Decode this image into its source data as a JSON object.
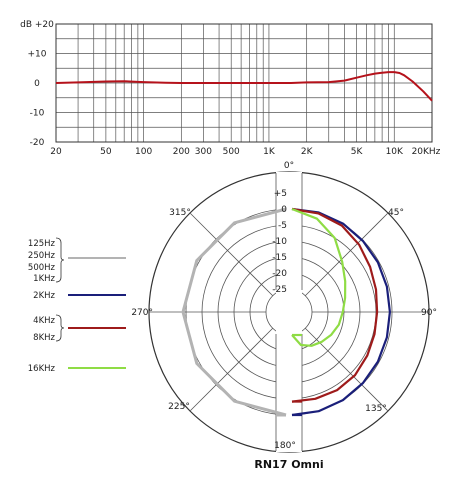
{
  "chart_data": [
    {
      "type": "line",
      "title": "",
      "xlabel": "",
      "ylabel": "",
      "x_scale": "log",
      "xlim": [
        20,
        20000
      ],
      "ylim": [
        -20,
        20
      ],
      "grid": true,
      "y_ticks": [
        {
          "value": 20,
          "label": "dB +20"
        },
        {
          "value": 10,
          "label": "+10"
        },
        {
          "value": 0,
          "label": "0"
        },
        {
          "value": -10,
          "label": "-10"
        },
        {
          "value": -20,
          "label": "-20"
        }
      ],
      "x_tick_labels": [
        {
          "value": 20,
          "label": "20"
        },
        {
          "value": 50,
          "label": "50"
        },
        {
          "value": 100,
          "label": "100"
        },
        {
          "value": 200,
          "label": "200"
        },
        {
          "value": 300,
          "label": "300"
        },
        {
          "value": 500,
          "label": "500"
        },
        {
          "value": 1000,
          "label": "1K"
        },
        {
          "value": 2000,
          "label": "2K"
        },
        {
          "value": 5000,
          "label": "5K"
        },
        {
          "value": 10000,
          "label": "10K"
        },
        {
          "value": 20000,
          "label": "20KHz"
        }
      ],
      "series": [
        {
          "color": "#b5121b",
          "x": [
            20,
            30,
            50,
            70,
            100,
            150,
            200,
            300,
            500,
            700,
            1000,
            1500,
            2000,
            3000,
            4000,
            5000,
            6000,
            7000,
            8000,
            9000,
            10000,
            11000,
            12000,
            14000,
            17000,
            20000
          ],
          "y": [
            0,
            0.2,
            0.5,
            0.6,
            0.3,
            0.1,
            0,
            0,
            0,
            0,
            0,
            0,
            0.2,
            0.3,
            0.8,
            1.8,
            2.6,
            3.2,
            3.5,
            3.7,
            3.7,
            3.4,
            2.6,
            0.5,
            -2.8,
            -6
          ]
        }
      ]
    },
    {
      "type": "polar",
      "title": "RN17 Omni",
      "rlim": [
        -25,
        5
      ],
      "radial_ticks": [
        {
          "value": 5,
          "label": "+5"
        },
        {
          "value": 0,
          "label": "0"
        },
        {
          "value": -5,
          "label": "-5"
        },
        {
          "value": -10,
          "label": "-10"
        },
        {
          "value": -15,
          "label": "-15"
        },
        {
          "value": -20,
          "label": "-20"
        },
        {
          "value": -25,
          "label": "-25"
        }
      ],
      "angle_labels": [
        {
          "angle": 0,
          "label": "0°"
        },
        {
          "angle": 45,
          "label": "45°"
        },
        {
          "angle": 90,
          "label": "90°"
        },
        {
          "angle": 135,
          "label": "135°"
        },
        {
          "angle": 180,
          "label": "180°"
        },
        {
          "angle": 225,
          "label": "225°"
        },
        {
          "angle": 270,
          "label": "270°"
        },
        {
          "angle": 315,
          "label": "315°"
        }
      ],
      "legend_position": "left",
      "series": [
        {
          "legend_lines": [
            "125Hz",
            "250Hz",
            "500Hz",
            "1KHz"
          ],
          "color": "#b3b3b3",
          "side": "left",
          "angles": [
            0,
            30,
            60,
            90,
            120,
            150,
            180
          ],
          "db": [
            0,
            0,
            0,
            0,
            0,
            0,
            0
          ]
        },
        {
          "legend_lines": [
            "2KHz"
          ],
          "color": "#1a1f7a",
          "side": "right",
          "angles": [
            0,
            15,
            30,
            45,
            60,
            75,
            90,
            105,
            120,
            135,
            150,
            165,
            180
          ],
          "db": [
            0,
            0,
            -0.3,
            -0.8,
            -1.2,
            -1.5,
            -1.6,
            -1.5,
            -1.2,
            -0.8,
            -0.4,
            -0.1,
            0
          ]
        },
        {
          "legend_lines": [
            "4KHz",
            "8KHz"
          ],
          "color": "#9e1b1b",
          "side": "right",
          "angles": [
            0,
            15,
            30,
            45,
            60,
            75,
            90,
            105,
            120,
            135,
            150,
            165,
            180
          ],
          "db": [
            0,
            -0.3,
            -1,
            -2.5,
            -4,
            -5,
            -5.6,
            -5.5,
            -5,
            -4.3,
            -4,
            -4.1,
            -4.2
          ]
        },
        {
          "legend_lines": [
            "16KHz"
          ],
          "color": "#8fdc45",
          "side": "right",
          "angles": [
            0,
            15,
            30,
            45,
            60,
            75,
            90,
            105,
            120,
            135,
            150,
            165,
            180
          ],
          "db": [
            0,
            -2,
            -5.5,
            -10,
            -13,
            -15,
            -16.3,
            -17,
            -18,
            -19,
            -20,
            -21.5,
            -25
          ]
        }
      ]
    }
  ]
}
